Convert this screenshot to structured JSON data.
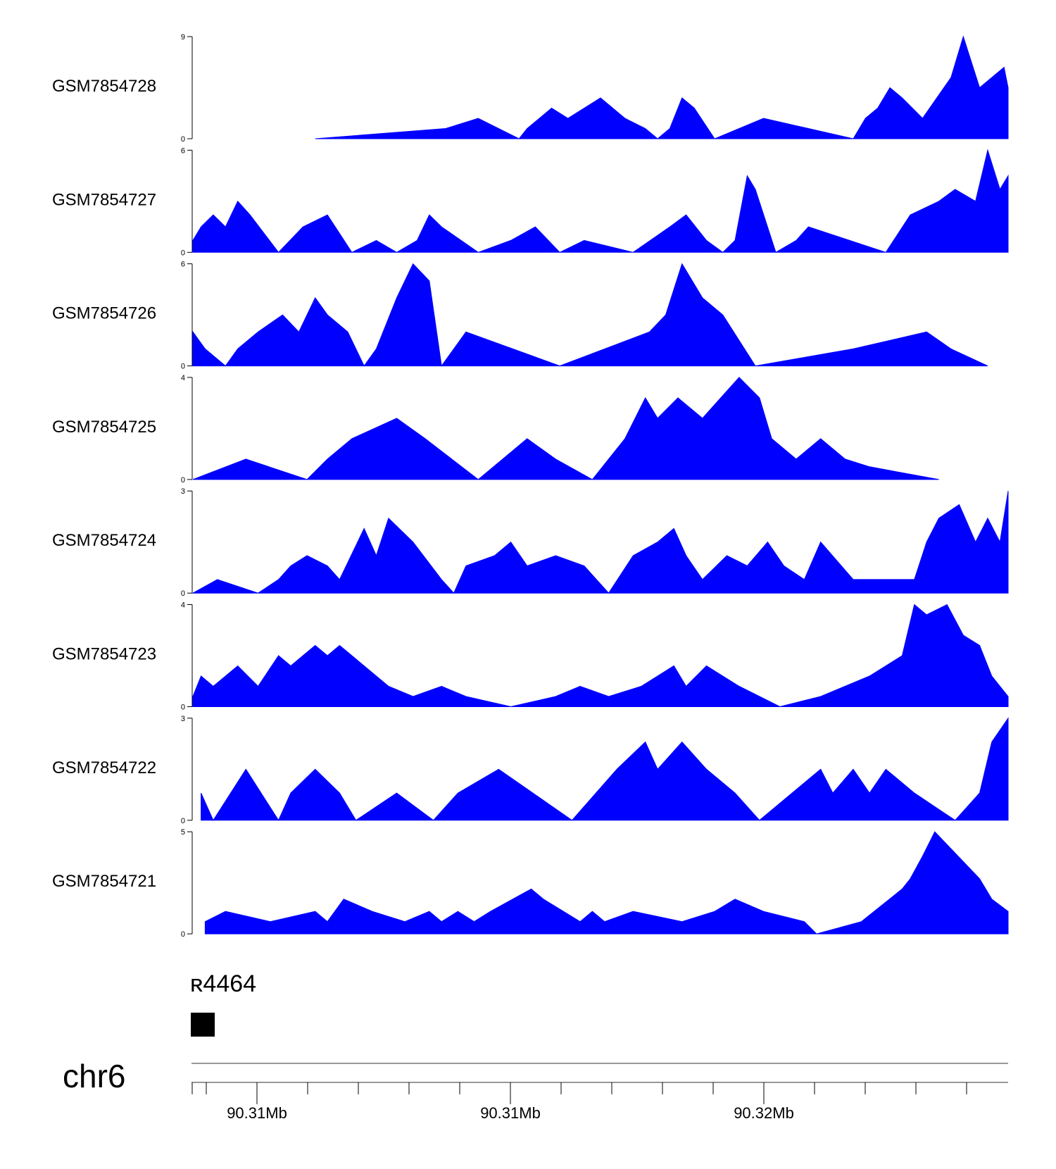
{
  "chart_data": {
    "type": "area",
    "color": "#0000FF",
    "tracks": [
      {
        "name": "GSM7854728",
        "ylim": [
          0,
          9
        ],
        "x": [
          0.15,
          0.31,
          0.35,
          0.4,
          0.41,
          0.44,
          0.46,
          0.5,
          0.53,
          0.555,
          0.57,
          0.585,
          0.6,
          0.615,
          0.64,
          0.7,
          0.81,
          0.825,
          0.84,
          0.855,
          0.87,
          0.895,
          0.93,
          0.945,
          0.965,
          0.995,
          1.0
        ],
        "y": [
          0,
          0.9,
          1.8,
          0,
          0.9,
          2.7,
          1.8,
          3.6,
          1.8,
          0.9,
          0,
          0.9,
          3.6,
          2.7,
          0,
          1.8,
          0,
          1.8,
          2.7,
          4.5,
          3.6,
          1.8,
          5.4,
          9.0,
          4.5,
          6.3,
          4.5
        ]
      },
      {
        "name": "GSM7854727",
        "ylim": [
          0,
          6
        ],
        "x": [
          0,
          0.01,
          0.025,
          0.04,
          0.055,
          0.07,
          0.105,
          0.135,
          0.165,
          0.195,
          0.225,
          0.25,
          0.275,
          0.29,
          0.305,
          0.35,
          0.39,
          0.42,
          0.45,
          0.48,
          0.54,
          0.585,
          0.605,
          0.63,
          0.65,
          0.665,
          0.68,
          0.69,
          0.715,
          0.74,
          0.755,
          0.85,
          0.88,
          0.915,
          0.935,
          0.96,
          0.975,
          0.99,
          1.0
        ],
        "y": [
          0.7,
          1.5,
          2.2,
          1.5,
          3.0,
          2.2,
          0,
          1.5,
          2.2,
          0,
          0.7,
          0,
          0.7,
          2.2,
          1.5,
          0,
          0.7,
          1.5,
          0,
          0.7,
          0,
          1.5,
          2.2,
          0.7,
          0,
          0.7,
          4.5,
          3.7,
          0,
          0.7,
          1.5,
          0,
          2.2,
          3.0,
          3.7,
          3.0,
          6.0,
          3.7,
          4.5
        ]
      },
      {
        "name": "GSM7854726",
        "ylim": [
          0,
          6
        ],
        "x": [
          0,
          0.015,
          0.04,
          0.055,
          0.08,
          0.11,
          0.13,
          0.15,
          0.165,
          0.19,
          0.21,
          0.225,
          0.25,
          0.27,
          0.29,
          0.305,
          0.335,
          0.45,
          0.56,
          0.58,
          0.6,
          0.625,
          0.65,
          0.69,
          0.81,
          0.9,
          0.93,
          0.975
        ],
        "y": [
          2.0,
          1.0,
          0,
          1.0,
          2.0,
          3.0,
          2.0,
          4.0,
          3.0,
          2.0,
          0,
          1.0,
          4.0,
          6.0,
          5.0,
          0,
          2.0,
          0,
          2.0,
          3.0,
          6.0,
          4.0,
          3.0,
          0,
          1.0,
          2.0,
          1.0,
          0
        ]
      },
      {
        "name": "GSM7854725",
        "ylim": [
          0,
          4
        ],
        "x": [
          0,
          0.065,
          0.14,
          0.165,
          0.195,
          0.25,
          0.285,
          0.35,
          0.41,
          0.445,
          0.49,
          0.53,
          0.555,
          0.57,
          0.595,
          0.625,
          0.67,
          0.695,
          0.71,
          0.74,
          0.77,
          0.8,
          0.83,
          0.915
        ],
        "y": [
          0,
          0.8,
          0,
          0.8,
          1.6,
          2.4,
          1.6,
          0,
          1.6,
          0.8,
          0,
          1.6,
          3.2,
          2.4,
          3.2,
          2.4,
          4.0,
          3.2,
          1.6,
          0.8,
          1.6,
          0.8,
          0.5,
          0
        ]
      },
      {
        "name": "GSM7854724",
        "ylim": [
          0,
          3
        ],
        "x": [
          0,
          0.03,
          0.08,
          0.105,
          0.12,
          0.14,
          0.165,
          0.18,
          0.21,
          0.225,
          0.24,
          0.27,
          0.305,
          0.32,
          0.335,
          0.37,
          0.39,
          0.41,
          0.445,
          0.48,
          0.51,
          0.54,
          0.57,
          0.59,
          0.605,
          0.625,
          0.655,
          0.68,
          0.705,
          0.725,
          0.75,
          0.77,
          0.81,
          0.885,
          0.9,
          0.915,
          0.94,
          0.96,
          0.975,
          0.99,
          1.0
        ],
        "y": [
          0,
          0.4,
          0,
          0.4,
          0.8,
          1.1,
          0.8,
          0.4,
          1.9,
          1.1,
          2.2,
          1.5,
          0.4,
          0,
          0.8,
          1.1,
          1.5,
          0.8,
          1.1,
          0.8,
          0,
          1.1,
          1.5,
          1.9,
          1.1,
          0.4,
          1.1,
          0.8,
          1.5,
          0.8,
          0.4,
          1.5,
          0.4,
          0.4,
          1.5,
          2.2,
          2.6,
          1.5,
          2.2,
          1.5,
          3.0
        ]
      },
      {
        "name": "GSM7854723",
        "ylim": [
          0,
          4
        ],
        "x": [
          0,
          0.01,
          0.025,
          0.055,
          0.08,
          0.105,
          0.12,
          0.15,
          0.165,
          0.18,
          0.24,
          0.27,
          0.305,
          0.335,
          0.39,
          0.445,
          0.475,
          0.51,
          0.55,
          0.59,
          0.605,
          0.63,
          0.67,
          0.72,
          0.77,
          0.83,
          0.85,
          0.87,
          0.885,
          0.9,
          0.925,
          0.945,
          0.965,
          0.98,
          1.0
        ],
        "y": [
          0.4,
          1.2,
          0.8,
          1.6,
          0.8,
          2.0,
          1.6,
          2.4,
          2.0,
          2.4,
          0.8,
          0.4,
          0.8,
          0.4,
          0,
          0.4,
          0.8,
          0.4,
          0.8,
          1.6,
          0.8,
          1.6,
          0.8,
          0,
          0.4,
          1.2,
          1.6,
          2.0,
          4.0,
          3.6,
          4.0,
          2.8,
          2.4,
          1.2,
          0.4
        ]
      },
      {
        "name": "GSM7854722",
        "ylim": [
          0,
          3
        ],
        "x": [
          0.01,
          0.025,
          0.065,
          0.105,
          0.12,
          0.15,
          0.18,
          0.2,
          0.25,
          0.295,
          0.325,
          0.375,
          0.465,
          0.52,
          0.555,
          0.57,
          0.6,
          0.63,
          0.665,
          0.695,
          0.735,
          0.77,
          0.785,
          0.81,
          0.83,
          0.85,
          0.885,
          0.935,
          0.965,
          0.98,
          1.0
        ],
        "y": [
          0.8,
          0,
          1.5,
          0,
          0.8,
          1.5,
          0.8,
          0,
          0.8,
          0,
          0.8,
          1.5,
          0,
          1.5,
          2.3,
          1.5,
          2.3,
          1.5,
          0.8,
          0,
          0.8,
          1.5,
          0.8,
          1.5,
          0.8,
          1.5,
          0.8,
          0,
          0.8,
          2.3,
          3.0
        ]
      },
      {
        "name": "GSM7854721",
        "ylim": [
          0,
          5
        ],
        "x": [
          0.015,
          0.04,
          0.095,
          0.15,
          0.165,
          0.185,
          0.22,
          0.26,
          0.29,
          0.305,
          0.325,
          0.345,
          0.365,
          0.415,
          0.43,
          0.475,
          0.49,
          0.505,
          0.54,
          0.6,
          0.64,
          0.665,
          0.7,
          0.75,
          0.765,
          0.82,
          0.87,
          0.88,
          0.895,
          0.91,
          0.965,
          0.98,
          1.0
        ],
        "y": [
          0.6,
          1.1,
          0.6,
          1.1,
          0.6,
          1.7,
          1.1,
          0.6,
          1.1,
          0.6,
          1.1,
          0.6,
          1.1,
          2.2,
          1.7,
          0.6,
          1.1,
          0.6,
          1.1,
          0.6,
          1.1,
          1.7,
          1.1,
          0.6,
          0,
          0.6,
          2.2,
          2.7,
          3.8,
          5.0,
          2.7,
          1.7,
          1.1
        ]
      }
    ],
    "gene": {
      "label": "ʀ4464"
    },
    "chromosome": "chr6",
    "x_axis": {
      "tick_labels": [
        "90.31Mb",
        "90.31Mb",
        "90.32Mb"
      ],
      "minor_ticks": 16
    }
  }
}
